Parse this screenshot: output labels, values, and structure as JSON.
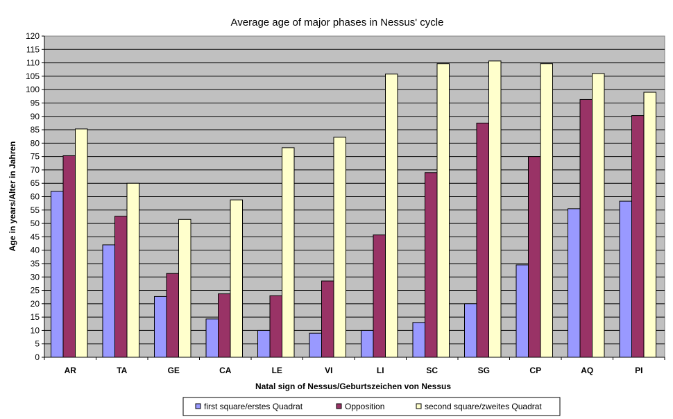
{
  "chart_data": {
    "type": "bar",
    "title": "Average age of major phases in Nessus' cycle",
    "xlabel": "Natal sign of Nessus/Geburtszeichen von Nessus",
    "ylabel": "Age in years/Alter in Jahren",
    "ylim": [
      0,
      120
    ],
    "ytick_step": 5,
    "grid": true,
    "legend_position": "bottom",
    "categories": [
      "AR",
      "TA",
      "GE",
      "CA",
      "LE",
      "VI",
      "LI",
      "SC",
      "SG",
      "CP",
      "AQ",
      "PI"
    ],
    "series": [
      {
        "name": "first square/erstes Quadrat",
        "color": "#9999ff",
        "values": [
          62,
          42,
          22.7,
          14.3,
          10,
          9,
          10,
          13,
          20,
          34.5,
          55.5,
          58.3
        ]
      },
      {
        "name": "Opposition",
        "color": "#993366",
        "values": [
          75.3,
          52.7,
          31.3,
          23.7,
          23,
          28.5,
          45.7,
          69,
          87.5,
          75,
          96.3,
          90.3
        ]
      },
      {
        "name": "second square/zweites Quadrat",
        "color": "#ffffcc",
        "values": [
          85.3,
          65,
          51.5,
          58.8,
          78.3,
          82.2,
          105.8,
          109.7,
          110.7,
          109.7,
          106,
          99
        ]
      }
    ]
  }
}
